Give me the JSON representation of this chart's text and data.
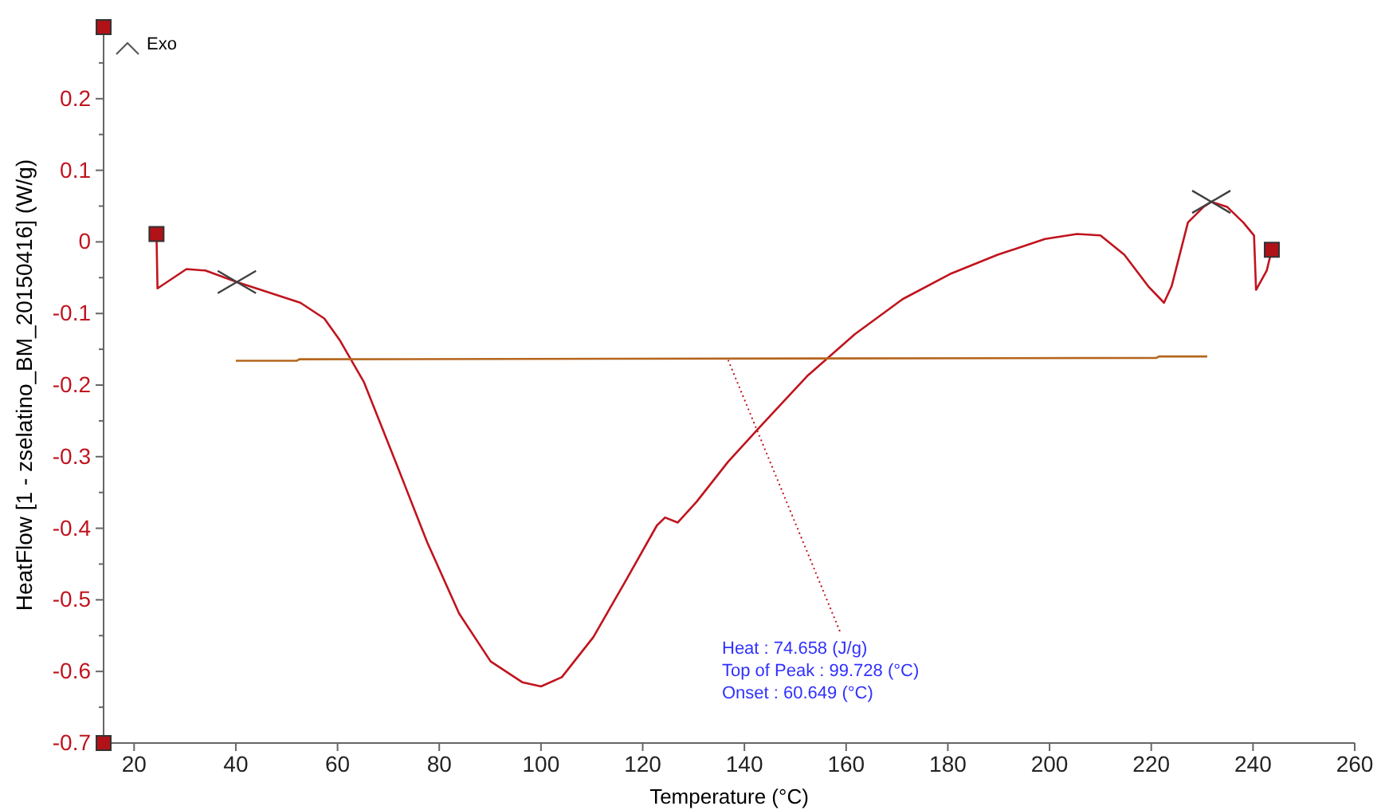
{
  "chart_data": {
    "type": "line",
    "xlabel": "Temperature (°C)",
    "ylabel": "HeatFlow [1 - zselatino_BM_20150416] (W/g)",
    "xlim": [
      14,
      260
    ],
    "xticks": [
      20,
      40,
      60,
      80,
      100,
      120,
      140,
      160,
      180,
      200,
      220,
      240,
      260
    ],
    "ylim": [
      -0.7,
      0.3
    ],
    "yticks": [
      -0.7,
      -0.6,
      -0.5,
      -0.4,
      -0.3,
      -0.2,
      -0.1,
      0,
      0.1,
      0.2,
      {
        "value": 0.3,
        "label": null
      }
    ],
    "grid": false,
    "annotations": [
      "Exo",
      {
        "text": "Heat :  74.658 (J/g)",
        "x": 136.8,
        "y": -0.165
      },
      "Top of Peak :  99.728 (°C)",
      "Onset :  60.649 (°C)"
    ],
    "series": [
      {
        "color": "#c0141e",
        "x": [
          24.4,
          24.6,
          30.3,
          34,
          40.2,
          52.7,
          57.4,
          60.5,
          65.2,
          71.4,
          77.6,
          83.9,
          90.1,
          96.3,
          100,
          104.1,
          110.3,
          116.6,
          122.8,
          124.4,
          126.9,
          130.6,
          136.8,
          143.1,
          152.4,
          161.7,
          171.1,
          180.4,
          189.8,
          199.1,
          205.4,
          210,
          214.7,
          219.4,
          222.5,
          224,
          227.2,
          230.3,
          231.8,
          234.9,
          238.1,
          240.2,
          240.6,
          242.7,
          243.7
        ],
        "values": [
          0.011,
          -0.065,
          -0.038,
          -0.04,
          -0.056,
          -0.085,
          -0.107,
          -0.138,
          -0.196,
          -0.307,
          -0.419,
          -0.519,
          -0.586,
          -0.615,
          -0.621,
          -0.608,
          -0.552,
          -0.474,
          -0.396,
          -0.385,
          -0.392,
          -0.363,
          -0.307,
          -0.258,
          -0.187,
          -0.129,
          -0.08,
          -0.045,
          -0.018,
          0.004,
          0.011,
          0.009,
          -0.018,
          -0.062,
          -0.085,
          -0.062,
          0.027,
          0.049,
          0.056,
          0.049,
          0.027,
          0.009,
          -0.067,
          -0.04,
          -0.011
        ]
      },
      {
        "color": "#b5651d",
        "x": [
          40,
          52,
          52.5,
          221,
          221.5,
          231
        ],
        "values": [
          -0.166,
          -0.166,
          -0.164,
          -0.162,
          -0.16,
          -0.16
        ]
      },
      {
        "type": "scatter",
        "marker": "cross",
        "color": "#404040",
        "x": [
          40.2,
          231.8
        ],
        "values": [
          -0.056,
          0.056
        ]
      },
      {
        "type": "scatter",
        "marker": "square",
        "color": "#b01218",
        "x": [
          24.4,
          243.7
        ],
        "values": [
          0.011,
          -0.011
        ]
      },
      {
        "type": "scatter",
        "marker": "square",
        "color": "#b01218",
        "x": [
          14,
          14
        ],
        "values": [
          0.3,
          -0.7
        ]
      }
    ]
  }
}
